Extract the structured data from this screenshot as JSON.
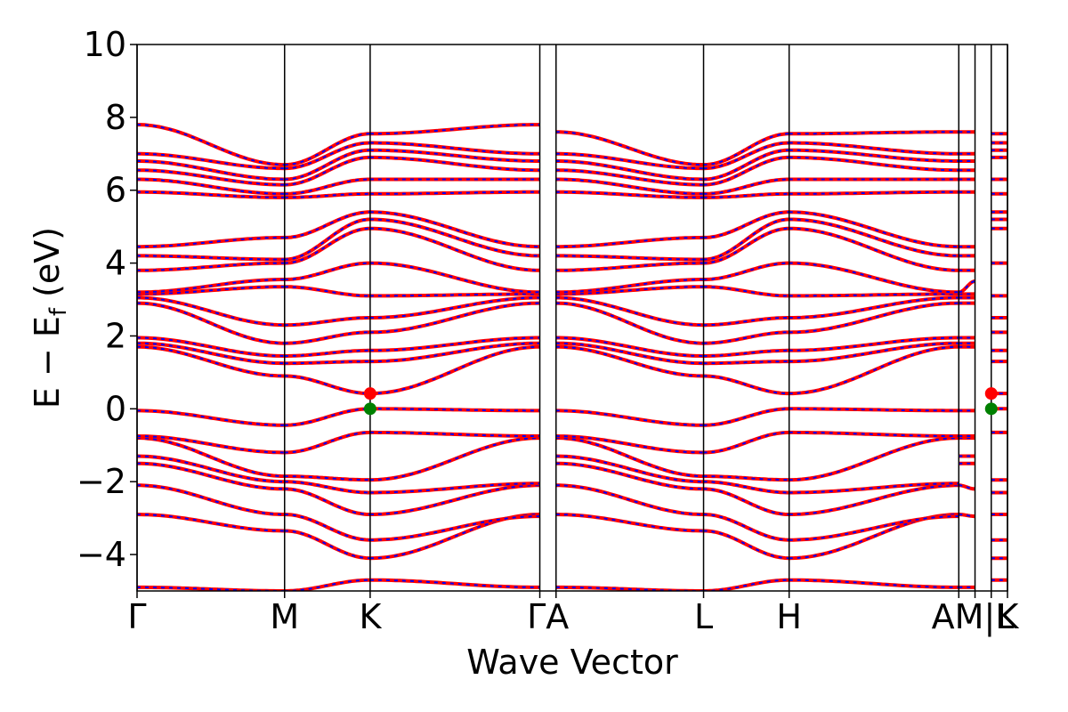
{
  "chart_data": {
    "type": "line",
    "xlabel": "Wave Vector",
    "ylabel": "E − E",
    "ylabel_sub": "f",
    "ylabel_unit": "(eV)",
    "ylim": [
      -5,
      10
    ],
    "yticks": [
      -4,
      -2,
      0,
      2,
      4,
      6,
      8,
      10
    ],
    "ytick_labels": [
      "−4",
      "−2",
      "0",
      "2",
      "4",
      "6",
      "8",
      "10"
    ],
    "grid": false,
    "legend": "none",
    "colors": {
      "band_primary": "#ff0000",
      "band_overlay": "#0000ff",
      "vbm_marker": "#008000",
      "cbm_marker": "#ff0000",
      "kpath_line": "#000000"
    },
    "kpoints": [
      {
        "label": "Γ",
        "x": 0.0
      },
      {
        "label": "M",
        "x": 1.0
      },
      {
        "label": "K",
        "x": 1.58
      },
      {
        "label": "Γ",
        "x": 2.73
      },
      {
        "label": "A",
        "x": 2.84
      },
      {
        "label": "L",
        "x": 3.84
      },
      {
        "label": "H",
        "x": 4.42
      },
      {
        "label": "A",
        "x": 5.57
      },
      {
        "label": "M",
        "x": 5.68
      },
      {
        "label": "L",
        "x": 5.79
      },
      {
        "label": "K",
        "x": 5.9
      }
    ],
    "xtick_labels": [
      {
        "text": "Γ",
        "x": 0.0
      },
      {
        "text": "M",
        "x": 1.0
      },
      {
        "text": "K",
        "x": 1.58
      },
      {
        "text": "ΓA",
        "x": 2.785
      },
      {
        "text": "L",
        "x": 3.84
      },
      {
        "text": "H",
        "x": 4.42
      },
      {
        "text": "AM|L",
        "x": 5.665
      },
      {
        "text": "K",
        "x": 5.9
      }
    ],
    "xlim": [
      0,
      5.9
    ],
    "band_extrema": [
      {
        "name": "CBM",
        "x": 1.58,
        "y": 0.42
      },
      {
        "name": "VBM",
        "x": 1.58,
        "y": 0.0
      }
    ],
    "band_extrema_right": [
      {
        "name": "CBM",
        "x": 5.79,
        "y": 0.42
      },
      {
        "name": "VBM",
        "x": 5.79,
        "y": 0.0
      }
    ],
    "segments": [
      {
        "from": "Γ",
        "to": "M",
        "x0": 0.0,
        "x1": 1.0,
        "bands": [
          [
            -4.9,
            -5.0
          ],
          [
            -2.9,
            -3.35
          ],
          [
            -2.1,
            -2.9
          ],
          [
            -1.5,
            -2.2
          ],
          [
            -1.3,
            -2.0
          ],
          [
            -0.8,
            -1.85
          ],
          [
            -0.75,
            -1.2
          ],
          [
            -0.05,
            -0.45
          ],
          [
            1.7,
            0.9
          ],
          [
            1.8,
            1.25
          ],
          [
            1.95,
            1.45
          ],
          [
            2.9,
            1.8
          ],
          [
            3.05,
            2.3
          ],
          [
            3.15,
            3.35
          ],
          [
            3.2,
            3.55
          ],
          [
            3.8,
            4.0
          ],
          [
            4.2,
            4.1
          ],
          [
            4.45,
            4.7
          ],
          [
            5.95,
            5.8
          ],
          [
            6.3,
            5.9
          ],
          [
            6.55,
            6.15
          ],
          [
            6.8,
            6.3
          ],
          [
            7.0,
            6.6
          ],
          [
            7.8,
            6.7
          ]
        ]
      },
      {
        "from": "M",
        "to": "K",
        "x0": 1.0,
        "x1": 1.58,
        "bands": [
          [
            -5.0,
            -4.7
          ],
          [
            -3.35,
            -4.1
          ],
          [
            -2.9,
            -3.6
          ],
          [
            -2.2,
            -2.9
          ],
          [
            -2.0,
            -2.3
          ],
          [
            -1.85,
            -1.95
          ],
          [
            -1.2,
            -0.65
          ],
          [
            -0.45,
            0.0
          ],
          [
            0.9,
            0.42
          ],
          [
            1.25,
            1.3
          ],
          [
            1.45,
            1.6
          ],
          [
            1.8,
            2.1
          ],
          [
            2.3,
            2.5
          ],
          [
            3.35,
            3.1
          ],
          [
            3.55,
            4.0
          ],
          [
            4.0,
            4.95
          ],
          [
            4.1,
            5.2
          ],
          [
            4.7,
            5.4
          ],
          [
            5.8,
            5.9
          ],
          [
            5.9,
            6.3
          ],
          [
            6.15,
            6.9
          ],
          [
            6.3,
            7.1
          ],
          [
            6.6,
            7.3
          ],
          [
            6.7,
            7.55
          ]
        ]
      },
      {
        "from": "K",
        "to": "Γ",
        "x0": 1.58,
        "x1": 2.73,
        "bands": [
          [
            -4.7,
            -4.9
          ],
          [
            -4.1,
            -2.9
          ],
          [
            -3.6,
            -2.95
          ],
          [
            -2.9,
            -2.1
          ],
          [
            -2.3,
            -2.05
          ],
          [
            -1.95,
            -0.8
          ],
          [
            -0.65,
            -0.75
          ],
          [
            0.0,
            -0.05
          ],
          [
            0.42,
            1.7
          ],
          [
            1.3,
            1.8
          ],
          [
            1.6,
            1.95
          ],
          [
            2.1,
            2.9
          ],
          [
            2.5,
            3.05
          ],
          [
            3.1,
            3.15
          ],
          [
            4.0,
            3.2
          ],
          [
            4.95,
            3.8
          ],
          [
            5.2,
            4.2
          ],
          [
            5.4,
            4.45
          ],
          [
            5.9,
            5.95
          ],
          [
            6.3,
            6.3
          ],
          [
            6.9,
            6.55
          ],
          [
            7.1,
            6.8
          ],
          [
            7.3,
            7.0
          ],
          [
            7.55,
            7.8
          ]
        ]
      },
      {
        "from": "A",
        "to": "L",
        "x0": 2.84,
        "x1": 3.84,
        "bands": [
          [
            -4.9,
            -5.0
          ],
          [
            -2.9,
            -3.35
          ],
          [
            -2.1,
            -2.9
          ],
          [
            -1.5,
            -2.2
          ],
          [
            -1.3,
            -2.0
          ],
          [
            -0.8,
            -1.85
          ],
          [
            -0.75,
            -1.2
          ],
          [
            -0.05,
            -0.45
          ],
          [
            1.7,
            0.9
          ],
          [
            1.8,
            1.25
          ],
          [
            1.95,
            1.45
          ],
          [
            2.9,
            1.8
          ],
          [
            3.05,
            2.3
          ],
          [
            3.15,
            3.35
          ],
          [
            3.2,
            3.55
          ],
          [
            3.8,
            4.0
          ],
          [
            4.2,
            4.1
          ],
          [
            4.45,
            4.7
          ],
          [
            5.95,
            5.8
          ],
          [
            6.3,
            5.9
          ],
          [
            6.55,
            6.15
          ],
          [
            6.8,
            6.3
          ],
          [
            7.0,
            6.6
          ],
          [
            7.6,
            6.7
          ]
        ]
      },
      {
        "from": "L",
        "to": "H",
        "x0": 3.84,
        "x1": 4.42,
        "bands": [
          [
            -5.0,
            -4.7
          ],
          [
            -3.35,
            -4.1
          ],
          [
            -2.9,
            -3.6
          ],
          [
            -2.2,
            -2.9
          ],
          [
            -2.0,
            -2.3
          ],
          [
            -1.85,
            -1.95
          ],
          [
            -1.2,
            -0.65
          ],
          [
            -0.45,
            0.0
          ],
          [
            0.9,
            0.42
          ],
          [
            1.25,
            1.3
          ],
          [
            1.45,
            1.6
          ],
          [
            1.8,
            2.1
          ],
          [
            2.3,
            2.5
          ],
          [
            3.35,
            3.1
          ],
          [
            3.55,
            4.0
          ],
          [
            4.0,
            4.95
          ],
          [
            4.1,
            5.2
          ],
          [
            4.7,
            5.4
          ],
          [
            5.8,
            5.9
          ],
          [
            5.9,
            6.3
          ],
          [
            6.15,
            6.9
          ],
          [
            6.3,
            7.1
          ],
          [
            6.6,
            7.3
          ],
          [
            6.7,
            7.55
          ]
        ]
      },
      {
        "from": "H",
        "to": "A",
        "x0": 4.42,
        "x1": 5.57,
        "bands": [
          [
            -4.7,
            -4.9
          ],
          [
            -4.1,
            -2.9
          ],
          [
            -3.6,
            -2.95
          ],
          [
            -2.9,
            -2.1
          ],
          [
            -2.3,
            -2.05
          ],
          [
            -1.95,
            -0.8
          ],
          [
            -0.65,
            -0.75
          ],
          [
            0.0,
            -0.05
          ],
          [
            0.42,
            1.7
          ],
          [
            1.3,
            1.8
          ],
          [
            1.6,
            1.95
          ],
          [
            2.1,
            2.9
          ],
          [
            2.5,
            3.05
          ],
          [
            3.1,
            3.15
          ],
          [
            4.0,
            3.2
          ],
          [
            4.95,
            3.8
          ],
          [
            5.2,
            4.2
          ],
          [
            5.4,
            4.45
          ],
          [
            5.9,
            5.95
          ],
          [
            6.3,
            6.3
          ],
          [
            6.9,
            6.55
          ],
          [
            7.1,
            6.8
          ],
          [
            7.3,
            7.0
          ],
          [
            7.55,
            7.6
          ]
        ]
      },
      {
        "from": "A",
        "to": "M",
        "x0": 5.57,
        "x1": 5.68,
        "bands": [
          [
            -4.9,
            -4.9
          ],
          [
            -2.9,
            -2.95
          ],
          [
            -2.1,
            -2.2
          ],
          [
            -1.5,
            -1.5
          ],
          [
            -1.3,
            -1.3
          ],
          [
            -0.8,
            -0.8
          ],
          [
            -0.75,
            -0.75
          ],
          [
            -0.05,
            -0.05
          ],
          [
            1.7,
            1.7
          ],
          [
            1.8,
            1.8
          ],
          [
            1.95,
            1.95
          ],
          [
            2.9,
            2.9
          ],
          [
            3.05,
            3.05
          ],
          [
            3.15,
            3.15
          ],
          [
            3.2,
            3.5
          ],
          [
            3.8,
            3.8
          ],
          [
            4.2,
            4.2
          ],
          [
            4.45,
            4.45
          ],
          [
            5.95,
            5.95
          ],
          [
            6.3,
            6.3
          ],
          [
            6.55,
            6.55
          ],
          [
            6.8,
            6.8
          ],
          [
            7.0,
            7.0
          ],
          [
            7.6,
            7.6
          ]
        ]
      },
      {
        "from": "L",
        "to": "K",
        "x0": 5.79,
        "x1": 5.9,
        "bands": [
          [
            -4.7,
            -4.7
          ],
          [
            -4.1,
            -4.1
          ],
          [
            -3.6,
            -3.6
          ],
          [
            -2.9,
            -2.9
          ],
          [
            -2.3,
            -2.3
          ],
          [
            -1.95,
            -1.95
          ],
          [
            -0.65,
            -0.65
          ],
          [
            0.0,
            0.0
          ],
          [
            0.42,
            0.42
          ],
          [
            1.3,
            1.3
          ],
          [
            1.6,
            1.6
          ],
          [
            2.1,
            2.1
          ],
          [
            2.5,
            2.5
          ],
          [
            3.1,
            3.1
          ],
          [
            4.0,
            4.0
          ],
          [
            4.95,
            4.95
          ],
          [
            5.2,
            5.2
          ],
          [
            5.4,
            5.4
          ],
          [
            5.9,
            5.9
          ],
          [
            6.3,
            6.3
          ],
          [
            6.9,
            6.9
          ],
          [
            7.1,
            7.1
          ],
          [
            7.3,
            7.3
          ],
          [
            7.55,
            7.55
          ]
        ]
      }
    ]
  }
}
